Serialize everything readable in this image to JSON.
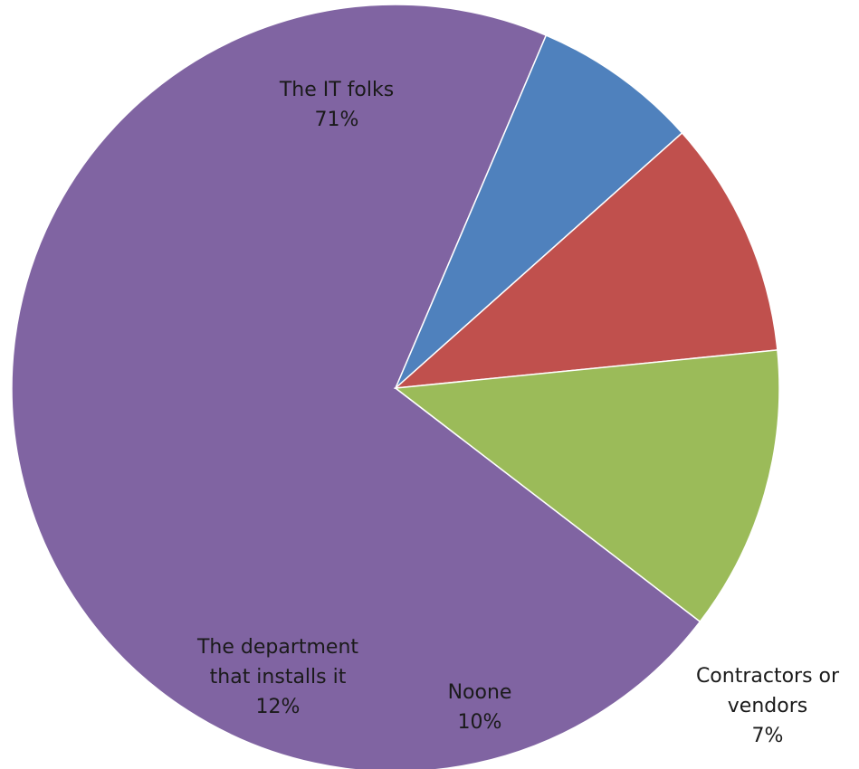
{
  "chart_data": {
    "type": "pie",
    "title": "",
    "slices": [
      {
        "label_lines": [
          "The IT folks"
        ],
        "value_label": "71%",
        "value": 71,
        "color": "#8064A2"
      },
      {
        "label_lines": [
          "Contractors or",
          "vendors"
        ],
        "value_label": "7%",
        "value": 7,
        "color": "#4F81BD"
      },
      {
        "label_lines": [
          "Noone"
        ],
        "value_label": "10%",
        "value": 10,
        "color": "#C0504D"
      },
      {
        "label_lines": [
          "The department",
          "that installs  it"
        ],
        "value_label": "12%",
        "value": 12,
        "color": "#9BBB59"
      }
    ]
  }
}
